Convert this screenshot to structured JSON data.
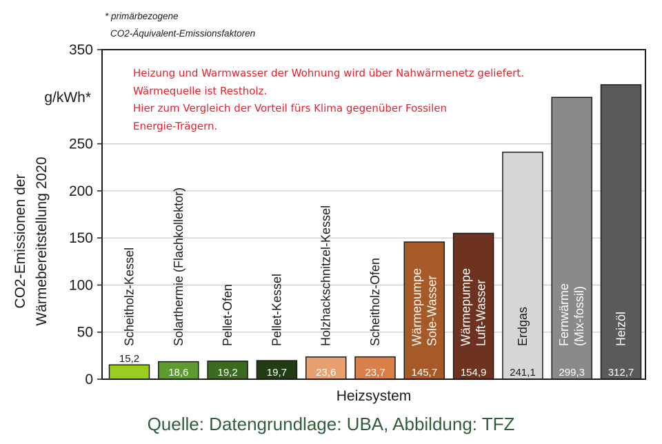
{
  "chart_data": {
    "type": "bar",
    "footnote_lines": [
      "* primärbezogene",
      "CO2-Äquivalent-Emissionsfaktoren"
    ],
    "unit": "g/kWh*",
    "ylabel_lines": [
      "CO2-Emissionen der",
      "Wärmebereitstellung 2020"
    ],
    "xlabel": "Heizsystem",
    "ylim": [
      0,
      350
    ],
    "yticks": [
      0,
      50,
      100,
      150,
      200,
      250,
      350
    ],
    "grid": true,
    "categories": [
      "Scheitholz-Kessel",
      "Solarthermie (Flachkollektor)",
      "Pellet-Ofen",
      "Pellet-Kessel",
      "Holzhackschnitzel-Kessel",
      "Scheitholz-Ofen",
      "Wärmepumpe Sole-Wasser",
      "Wärmepumpe Luft-Wasser",
      "Erdgas",
      "Fernwärme (Mix-fossil)",
      "Heizöl"
    ],
    "category_label_lines": [
      [
        "Scheitholz-Kessel"
      ],
      [
        "Solarthermie (Flachkollektor)"
      ],
      [
        "Pellet-Ofen"
      ],
      [
        "Pellet-Kessel"
      ],
      [
        "Holzhackschnitzel-Kessel"
      ],
      [
        "Scheitholz-Ofen"
      ],
      [
        "Wärmepumpe",
        "Sole-Wasser"
      ],
      [
        "Wärmepumpe",
        "Luft-Wasser"
      ],
      [
        "Erdgas"
      ],
      [
        "Fernwärme",
        "(Mix-fossil)"
      ],
      [
        "Heizöl"
      ]
    ],
    "values": [
      15.2,
      18.6,
      19.2,
      19.7,
      23.6,
      23.7,
      145.7,
      154.9,
      241.1,
      299.3,
      312.7
    ],
    "value_labels": [
      "15,2",
      "18,6",
      "19,2",
      "19,7",
      "23,6",
      "23,7",
      "145,7",
      "154,9",
      "241,1",
      "299,3",
      "312,7"
    ],
    "colors": [
      "#9acd1e",
      "#5e9a2e",
      "#3c6b1f",
      "#223d14",
      "#e8a070",
      "#d9804a",
      "#a55a28",
      "#6e3320",
      "#d6d6d6",
      "#8a8a8a",
      "#5a5a5a"
    ],
    "label_colors": [
      "#1a1a1a",
      "#ffffff",
      "#ffffff",
      "#ffffff",
      "#ffffff",
      "#ffffff",
      "#ffffff",
      "#ffffff",
      "#1a1a1a",
      "#ffffff",
      "#ffffff"
    ]
  },
  "annotation": {
    "lines": [
      "Heizung und Warmwasser der Wohnung wird über Nahwärmenetz geliefert.",
      "Wärmequelle ist Restholz.",
      "Hier zum Vergleich der Vorteil fürs Klima gegenüber Fossilen",
      "Energie-Trägern."
    ],
    "color": "#e5202a"
  },
  "source": {
    "text": "Quelle: Datengrundlage: UBA, Abbildung: TFZ",
    "color": "#2f5d3a"
  }
}
